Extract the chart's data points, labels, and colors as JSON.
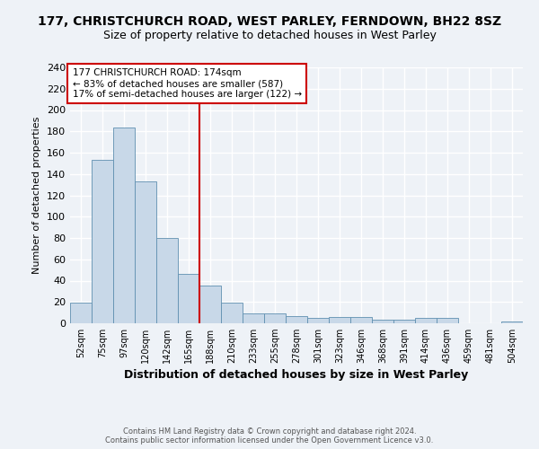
{
  "title1": "177, CHRISTCHURCH ROAD, WEST PARLEY, FERNDOWN, BH22 8SZ",
  "title2": "Size of property relative to detached houses in West Parley",
  "xlabel": "Distribution of detached houses by size in West Parley",
  "ylabel": "Number of detached properties",
  "footer1": "Contains HM Land Registry data © Crown copyright and database right 2024.",
  "footer2": "Contains public sector information licensed under the Open Government Licence v3.0.",
  "annotation_line1": "177 CHRISTCHURCH ROAD: 174sqm",
  "annotation_line2": "← 83% of detached houses are smaller (587)",
  "annotation_line3": "17% of semi-detached houses are larger (122) →",
  "bar_color": "#c8d8e8",
  "bar_edge_color": "#6090b0",
  "vline_color": "#cc0000",
  "annotation_box_color": "#cc0000",
  "categories": [
    "52sqm",
    "75sqm",
    "97sqm",
    "120sqm",
    "142sqm",
    "165sqm",
    "188sqm",
    "210sqm",
    "233sqm",
    "255sqm",
    "278sqm",
    "301sqm",
    "323sqm",
    "346sqm",
    "368sqm",
    "391sqm",
    "414sqm",
    "436sqm",
    "459sqm",
    "481sqm",
    "504sqm"
  ],
  "values": [
    19,
    153,
    184,
    133,
    80,
    46,
    35,
    19,
    9,
    9,
    7,
    5,
    6,
    6,
    3,
    3,
    5,
    5,
    0,
    0,
    2
  ],
  "ylim": [
    0,
    240
  ],
  "yticks": [
    0,
    20,
    40,
    60,
    80,
    100,
    120,
    140,
    160,
    180,
    200,
    220,
    240
  ],
  "vline_pos": 5.5,
  "bg_color": "#eef2f7",
  "grid_color": "#ffffff",
  "title1_fontsize": 10,
  "title2_fontsize": 9,
  "footer_fontsize": 6,
  "xlabel_fontsize": 9,
  "ylabel_fontsize": 8,
  "annotation_fontsize": 7.5,
  "ytick_fontsize": 8,
  "xtick_fontsize": 7
}
